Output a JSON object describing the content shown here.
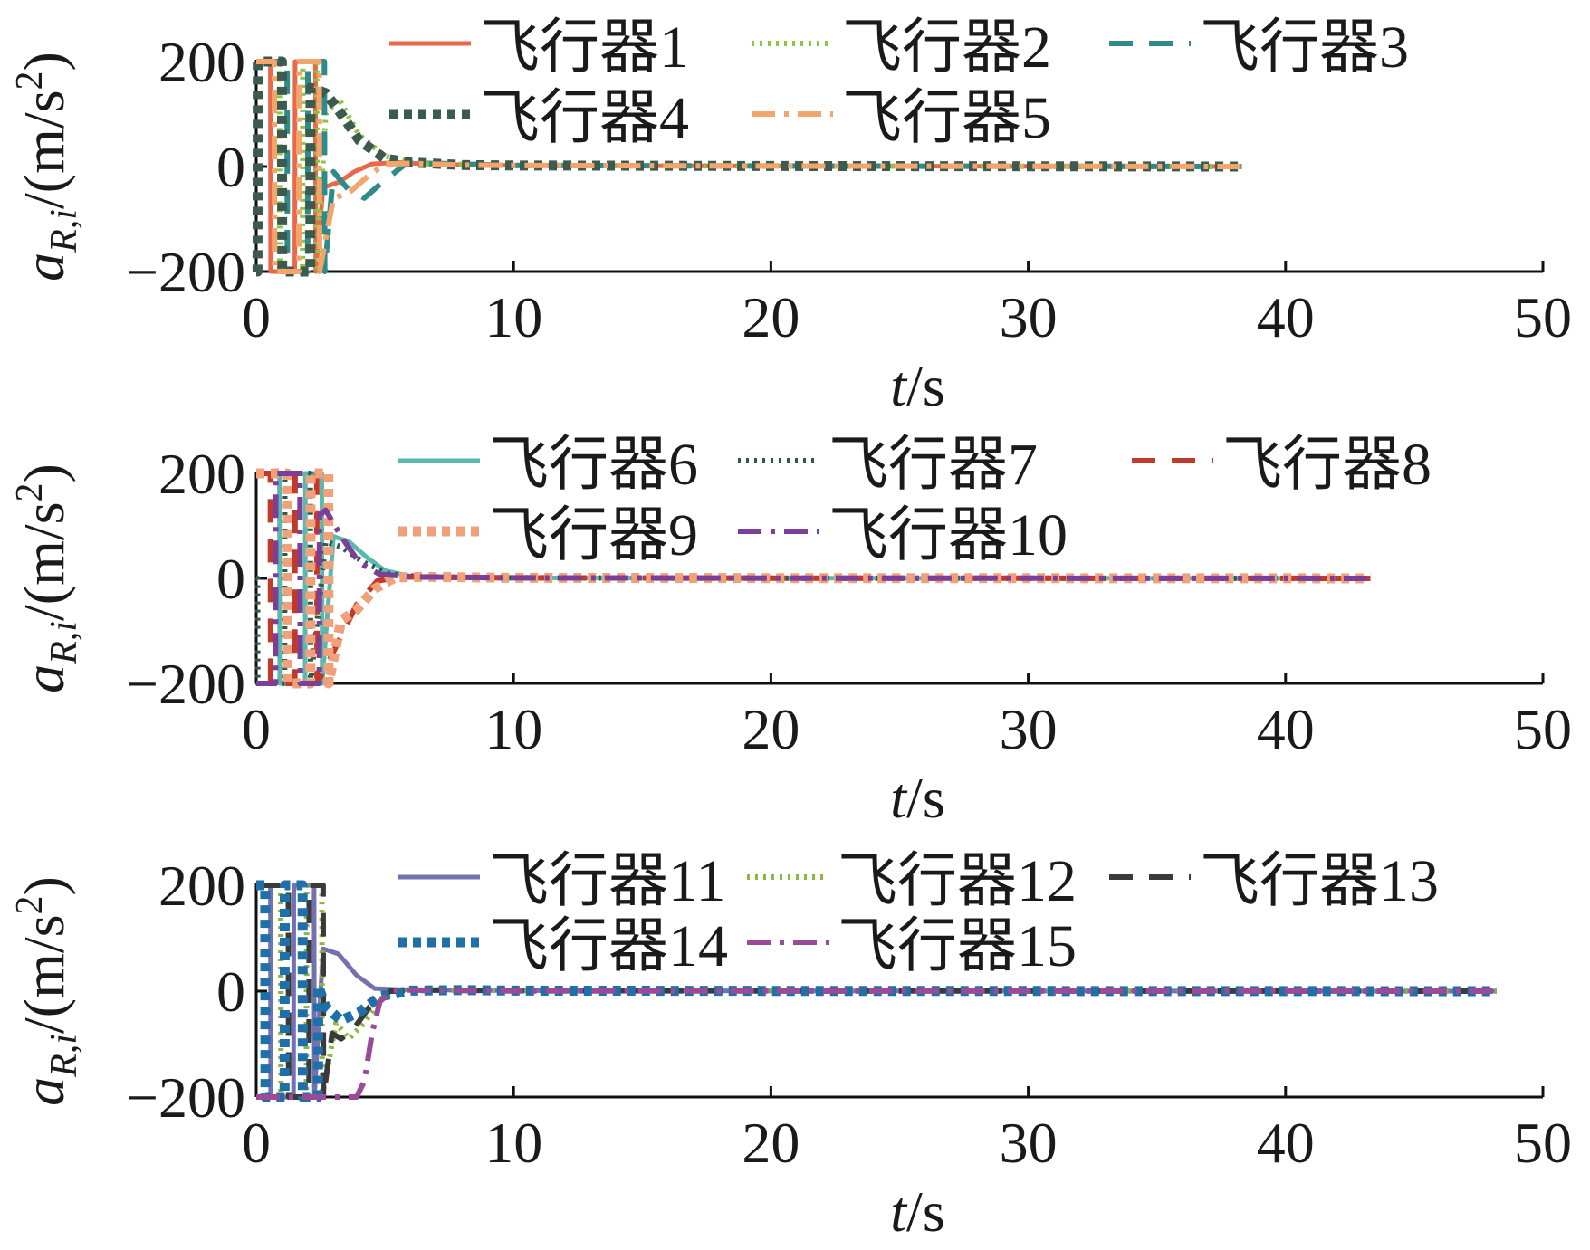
{
  "chart_data": [
    {
      "type": "line",
      "xlabel": {
        "var": "t",
        "unit": "/s"
      },
      "ylabel": {
        "var": "a",
        "sub": "R,i",
        "unit": "/(m/s",
        "sup": "2",
        "close": ")"
      },
      "xlim": [
        0,
        50
      ],
      "ylim": [
        -200,
        200
      ],
      "xticks": [
        0,
        10,
        20,
        30,
        40,
        50
      ],
      "yticks": [
        -200,
        0,
        200
      ],
      "grid": false,
      "legend_position": "top",
      "series": [
        {
          "name": "飞行器1",
          "color": "#e8684a",
          "style": "solid",
          "x": [
            0,
            0.55,
            0.56,
            1.5,
            1.51,
            2.3,
            2.31,
            2.6,
            3.2,
            3.8,
            4.5,
            5.5,
            7,
            10,
            20,
            30,
            38.3
          ],
          "y": [
            200,
            200,
            -200,
            -200,
            200,
            200,
            -200,
            -40,
            -30,
            -10,
            5,
            8,
            4,
            2,
            1,
            0.5,
            0
          ]
        },
        {
          "name": "飞行器2",
          "color": "#8cc63f",
          "style": "dot",
          "x": [
            0,
            0.9,
            0.91,
            1.8,
            1.81,
            2.35,
            2.36,
            2.7,
            3.2,
            4.0,
            5.0,
            6.0,
            8,
            10,
            20,
            30,
            38.3
          ],
          "y": [
            200,
            200,
            -200,
            -200,
            200,
            200,
            -200,
            100,
            130,
            60,
            20,
            8,
            4,
            2,
            1,
            0.5,
            0
          ]
        },
        {
          "name": "飞行器3",
          "color": "#2e8b8a",
          "style": "dash",
          "x": [
            0,
            1.2,
            1.21,
            2.0,
            2.01,
            2.65,
            2.66,
            3.0,
            3.6,
            4.2,
            4.9,
            5.8,
            7,
            10,
            20,
            30,
            38.3
          ],
          "y": [
            200,
            200,
            -200,
            -200,
            200,
            200,
            -200,
            -10,
            -45,
            -60,
            -30,
            5,
            6,
            2,
            1,
            0.5,
            0
          ]
        },
        {
          "name": "飞行器4",
          "color": "#3c5a4e",
          "style": "heavydot",
          "x": [
            0,
            0.05,
            0.06,
            1.0,
            1.01,
            2.1,
            2.11,
            2.7,
            3.3,
            4.0,
            5.0,
            6.0,
            8,
            10,
            20,
            30,
            38.3
          ],
          "y": [
            -200,
            -200,
            200,
            200,
            -200,
            -200,
            150,
            140,
            100,
            50,
            15,
            8,
            3,
            2,
            1,
            0.5,
            0
          ]
        },
        {
          "name": "飞行器5",
          "color": "#f3a56b",
          "style": "dashdot",
          "x": [
            0,
            0.7,
            0.71,
            1.65,
            1.66,
            2.45,
            2.46,
            3.0,
            3.6,
            4.3,
            5.0,
            6.0,
            8,
            10,
            20,
            30,
            38.3
          ],
          "y": [
            200,
            200,
            -200,
            -200,
            200,
            200,
            -200,
            -60,
            -50,
            -20,
            5,
            6,
            3,
            2,
            1,
            0.5,
            0
          ]
        }
      ]
    },
    {
      "type": "line",
      "xlabel": {
        "var": "t",
        "unit": "/s"
      },
      "ylabel": {
        "var": "a",
        "sub": "R,i",
        "unit": "/(m/s",
        "sup": "2",
        "close": ")"
      },
      "xlim": [
        0,
        50
      ],
      "ylim": [
        -200,
        200
      ],
      "xticks": [
        0,
        10,
        20,
        30,
        40,
        50
      ],
      "yticks": [
        -200,
        0,
        200
      ],
      "grid": false,
      "legend_position": "top",
      "series": [
        {
          "name": "飞行器6",
          "color": "#5bb8b0",
          "style": "solid",
          "x": [
            0,
            0.9,
            0.91,
            1.9,
            1.91,
            2.55,
            2.56,
            3.0,
            3.6,
            4.3,
            5.0,
            6.0,
            8,
            10,
            20,
            30,
            40,
            43.3
          ],
          "y": [
            200,
            200,
            -200,
            -200,
            200,
            200,
            -200,
            80,
            70,
            40,
            15,
            4,
            2,
            1,
            0.5,
            0.3,
            0.1,
            0
          ]
        },
        {
          "name": "飞行器7",
          "color": "#2f5a4a",
          "style": "dot",
          "x": [
            0,
            0.05,
            0.06,
            1.1,
            1.11,
            2.1,
            2.11,
            2.7,
            3.3,
            4.2,
            5.2,
            6.5,
            8,
            10,
            20,
            30,
            40,
            43.3
          ],
          "y": [
            0,
            0,
            -200,
            -200,
            200,
            200,
            -200,
            70,
            60,
            30,
            8,
            3,
            2,
            1,
            0.5,
            0.3,
            0.1,
            0
          ]
        },
        {
          "name": "飞行器8",
          "color": "#c0392b",
          "style": "dash",
          "x": [
            0,
            0.55,
            0.56,
            1.5,
            1.51,
            2.35,
            2.36,
            2.9,
            3.3,
            3.9,
            4.7,
            5.6,
            7,
            10,
            20,
            30,
            40,
            43.3
          ],
          "y": [
            200,
            200,
            -200,
            -200,
            200,
            200,
            -200,
            -150,
            -110,
            -50,
            -5,
            3,
            2,
            1,
            0.5,
            0.3,
            0.1,
            0
          ]
        },
        {
          "name": "飞行器9",
          "color": "#f0a17a",
          "style": "heavydot",
          "x": [
            0,
            1.2,
            1.21,
            2.1,
            2.11,
            2.8,
            2.81,
            3.3,
            3.9,
            4.6,
            5.4,
            6.5,
            8,
            10,
            20,
            30,
            40,
            43.3
          ],
          "y": [
            200,
            200,
            -200,
            -200,
            200,
            200,
            -200,
            -80,
            -60,
            -20,
            2,
            3,
            2,
            1,
            0.5,
            0.3,
            0.1,
            0
          ]
        },
        {
          "name": "飞行器10",
          "color": "#7b3f98",
          "style": "dashdot",
          "x": [
            0,
            0.75,
            0.76,
            1.7,
            1.71,
            2.45,
            2.46,
            2.7,
            3.3,
            4.0,
            4.8,
            6.0,
            8,
            10,
            20,
            30,
            40,
            43.3
          ],
          "y": [
            -200,
            -200,
            200,
            200,
            -200,
            -200,
            120,
            130,
            80,
            30,
            8,
            3,
            2,
            1,
            0.5,
            0.3,
            0.1,
            0
          ]
        }
      ]
    },
    {
      "type": "line",
      "xlabel": {
        "var": "t",
        "unit": "/s"
      },
      "ylabel": {
        "var": "a",
        "sub": "R,i",
        "unit": "/(m/s",
        "sup": "2",
        "close": ")"
      },
      "xlim": [
        0,
        50
      ],
      "ylim": [
        -200,
        200
      ],
      "xticks": [
        0,
        10,
        20,
        30,
        40,
        50
      ],
      "yticks": [
        -200,
        0,
        200
      ],
      "grid": false,
      "legend_position": "top",
      "series": [
        {
          "name": "飞行器11",
          "color": "#7471b0",
          "style": "solid",
          "x": [
            0,
            0.55,
            0.56,
            1.45,
            1.46,
            2.25,
            2.26,
            2.6,
            3.2,
            3.9,
            4.6,
            5.5,
            7,
            10,
            20,
            30,
            40,
            48.2
          ],
          "y": [
            200,
            200,
            -200,
            -200,
            200,
            200,
            -200,
            80,
            70,
            30,
            5,
            3,
            2,
            1,
            0.5,
            0.3,
            0.1,
            0
          ]
        },
        {
          "name": "飞行器12",
          "color": "#8cb83c",
          "style": "dot",
          "x": [
            0,
            0.95,
            0.96,
            1.95,
            1.96,
            2.55,
            2.56,
            3.1,
            3.6,
            4.2,
            4.8,
            5.6,
            7,
            10,
            20,
            30,
            40,
            48.2
          ],
          "y": [
            200,
            200,
            -200,
            -200,
            200,
            200,
            -200,
            -60,
            -90,
            -60,
            -15,
            2,
            2,
            1,
            0.5,
            0.3,
            0.1,
            0
          ]
        },
        {
          "name": "飞行器13",
          "color": "#3a3a3a",
          "style": "dash",
          "x": [
            0,
            1.25,
            1.26,
            2.05,
            2.06,
            2.6,
            2.61,
            2.95,
            3.3,
            3.8,
            4.4,
            5.2,
            7,
            10,
            20,
            30,
            40,
            48.2
          ],
          "y": [
            200,
            200,
            -200,
            -200,
            200,
            200,
            -200,
            -80,
            -90,
            -70,
            -30,
            0,
            2,
            1,
            0.5,
            0.3,
            0.1,
            0
          ]
        },
        {
          "name": "飞行器14",
          "color": "#1f6fa8",
          "style": "heavydot",
          "x": [
            0,
            0.35,
            0.36,
            1.1,
            1.11,
            1.8,
            1.81,
            2.4,
            2.41,
            2.7,
            3.3,
            4.0,
            4.8,
            6.0,
            8,
            10,
            20,
            30,
            40,
            48.2
          ],
          "y": [
            200,
            200,
            -200,
            -200,
            200,
            200,
            -200,
            -200,
            10,
            -30,
            -55,
            -40,
            -10,
            1,
            2,
            1,
            0.5,
            0.3,
            0.1,
            0
          ]
        },
        {
          "name": "飞行器15",
          "color": "#9a4a97",
          "style": "dashdot",
          "x": [
            0,
            3.9,
            4.2,
            4.5,
            4.8,
            5.3,
            6.0,
            8,
            10,
            20,
            30,
            40,
            48.2
          ],
          "y": [
            -200,
            -200,
            -170,
            -80,
            -20,
            2,
            2,
            1,
            0.5,
            0.3,
            0.2,
            0.1,
            0
          ]
        }
      ]
    }
  ]
}
